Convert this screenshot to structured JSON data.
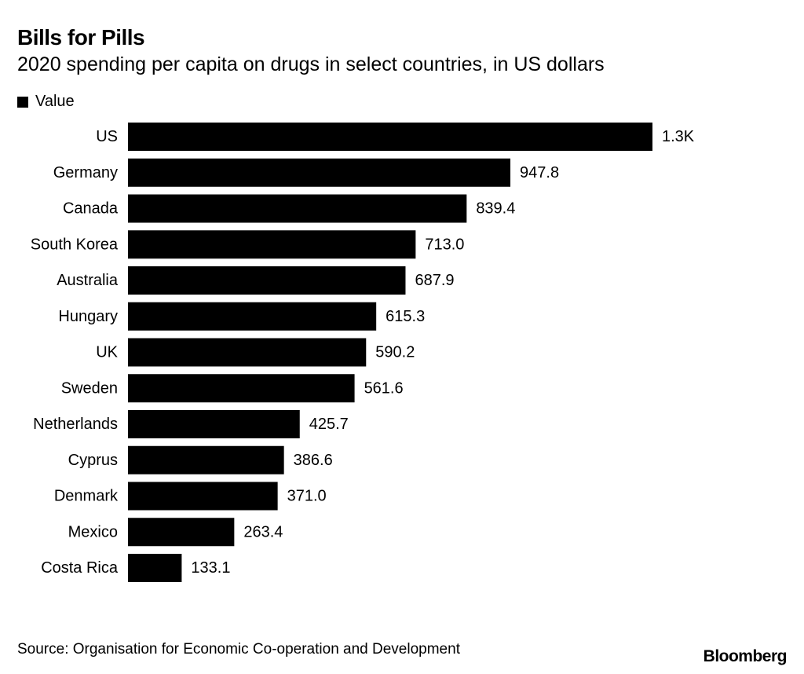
{
  "title": "Bills for Pills",
  "subtitle": "2020 spending per capita on drugs in select countries, in US dollars",
  "legend": {
    "label": "Value",
    "color": "#000000"
  },
  "source": "Source: Organisation for Economic Co-operation and Development",
  "brand": "Bloomberg",
  "chart_data": {
    "type": "bar",
    "orientation": "horizontal",
    "categories": [
      "US",
      "Germany",
      "Canada",
      "South Korea",
      "Australia",
      "Hungary",
      "UK",
      "Sweden",
      "Netherlands",
      "Cyprus",
      "Denmark",
      "Mexico",
      "Costa Rica"
    ],
    "series": [
      {
        "name": "Value",
        "values": [
          1300,
          947.8,
          839.4,
          713.0,
          687.9,
          615.3,
          590.2,
          561.6,
          425.7,
          386.6,
          371.0,
          263.4,
          133.1
        ],
        "labels": [
          "1.3K",
          "947.8",
          "839.4",
          "713.0",
          "687.9",
          "615.3",
          "590.2",
          "561.6",
          "425.7",
          "386.6",
          "371.0",
          "263.4",
          "133.1"
        ],
        "color": "#000000"
      }
    ],
    "xlim": [
      0,
      1300
    ],
    "grid": false,
    "legend_position": "top-left"
  }
}
